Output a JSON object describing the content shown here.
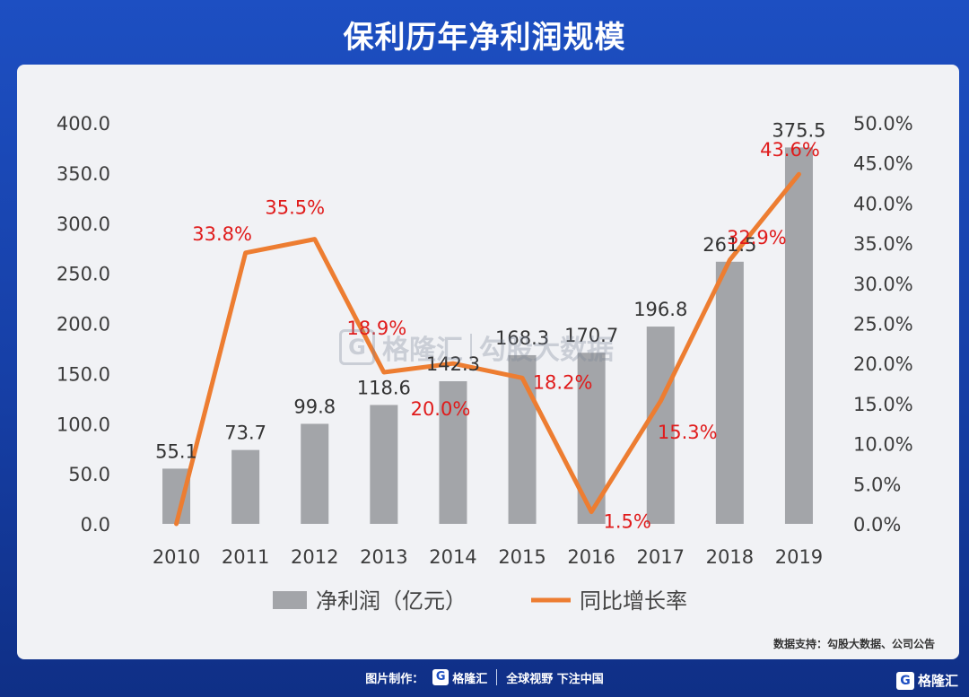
{
  "title": "保利历年净利润规模",
  "source": "数据支持：勾股大数据、公司公告",
  "footer": {
    "made_by": "图片制作：",
    "brand": "格隆汇",
    "slogan": "全球视野 下注中国"
  },
  "watermark": {
    "brand": "格隆汇",
    "text": "勾股大数据"
  },
  "corner_logo": "格隆汇",
  "colors": {
    "bar": "#a3a5a9",
    "line": "#ed7d31",
    "rate_label": "#e01b1b",
    "background": "#1d4fc2",
    "panel": "#f1f2f5"
  },
  "chart_data": {
    "type": "bar",
    "categories": [
      "2010",
      "2011",
      "2012",
      "2013",
      "2014",
      "2015",
      "2016",
      "2017",
      "2018",
      "2019"
    ],
    "series": [
      {
        "name": "净利润（亿元）",
        "type": "bar",
        "axis": "left",
        "values": [
          55.1,
          73.7,
          99.8,
          118.6,
          142.3,
          168.3,
          170.7,
          196.8,
          261.5,
          375.5
        ],
        "labels": [
          "55.1",
          "73.7",
          "99.8",
          "118.6",
          "142.3",
          "168.3",
          "170.7",
          "196.8",
          "261.5",
          "375.5"
        ]
      },
      {
        "name": "同比增长率",
        "type": "line",
        "axis": "right",
        "values": [
          0.0,
          33.8,
          35.5,
          18.9,
          20.0,
          18.2,
          1.5,
          15.3,
          32.9,
          43.6
        ],
        "labels": [
          "",
          "33.8%",
          "35.5%",
          "18.9%",
          "20.0%",
          "18.2%",
          "1.5%",
          "15.3%",
          "32.9%",
          "43.6%"
        ]
      }
    ],
    "left_axis": {
      "ylim": [
        0,
        400
      ],
      "ticks": [
        "0.0",
        "50.0",
        "100.0",
        "150.0",
        "200.0",
        "250.0",
        "300.0",
        "350.0",
        "400.0"
      ]
    },
    "right_axis": {
      "ylim": [
        0,
        50
      ],
      "ticks": [
        "0.0%",
        "5.0%",
        "10.0%",
        "15.0%",
        "20.0%",
        "25.0%",
        "30.0%",
        "35.0%",
        "40.0%",
        "45.0%",
        "50.0%"
      ]
    },
    "grid": false,
    "legend": "bottom"
  }
}
